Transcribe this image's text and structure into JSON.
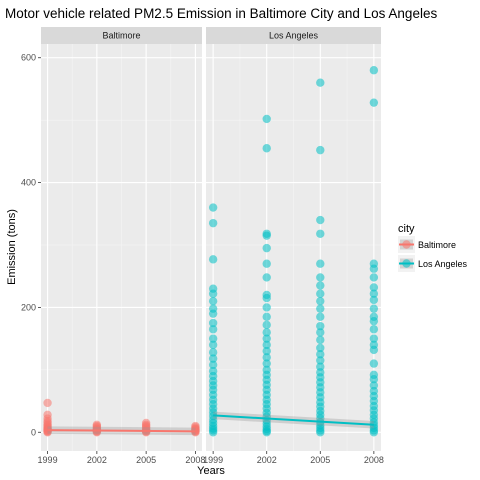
{
  "chart_data": {
    "type": "scatter",
    "title": "Motor vehicle related PM2.5 Emission in Baltimore City and Los Angeles",
    "xlabel": "Years",
    "ylabel": "Emission (tons)",
    "x_ticks": [
      1999,
      2002,
      2005,
      2008
    ],
    "y_ticks": [
      0,
      200,
      400,
      600
    ],
    "xlim": [
      1998.6,
      2008.4
    ],
    "ylim": [
      -30,
      622
    ],
    "grid": true,
    "legend": {
      "title": "city",
      "position": "right",
      "entries": [
        {
          "name": "Baltimore",
          "color": "#F8766D"
        },
        {
          "name": "Los Angeles",
          "color": "#00BFC4"
        }
      ]
    },
    "facets": [
      {
        "label": "Baltimore",
        "series": [
          {
            "name": "Baltimore",
            "color": "#F8766D",
            "points": [
              [
                1999,
                47
              ],
              [
                1999,
                28
              ],
              [
                1999,
                22
              ],
              [
                1999,
                18
              ],
              [
                1999,
                15
              ],
              [
                1999,
                12
              ],
              [
                1999,
                10
              ],
              [
                1999,
                8
              ],
              [
                1999,
                6
              ],
              [
                1999,
                5
              ],
              [
                1999,
                4
              ],
              [
                1999,
                3
              ],
              [
                1999,
                2
              ],
              [
                1999,
                1
              ],
              [
                1999,
                0
              ],
              [
                2002,
                12
              ],
              [
                2002,
                10
              ],
              [
                2002,
                8
              ],
              [
                2002,
                6
              ],
              [
                2002,
                5
              ],
              [
                2002,
                4
              ],
              [
                2002,
                3
              ],
              [
                2002,
                2
              ],
              [
                2002,
                1
              ],
              [
                2002,
                0
              ],
              [
                2005,
                15
              ],
              [
                2005,
                12
              ],
              [
                2005,
                10
              ],
              [
                2005,
                8
              ],
              [
                2005,
                6
              ],
              [
                2005,
                4
              ],
              [
                2005,
                3
              ],
              [
                2005,
                2
              ],
              [
                2005,
                1
              ],
              [
                2005,
                0
              ],
              [
                2008,
                10
              ],
              [
                2008,
                8
              ],
              [
                2008,
                6
              ],
              [
                2008,
                5
              ],
              [
                2008,
                4
              ],
              [
                2008,
                3
              ],
              [
                2008,
                2
              ],
              [
                2008,
                1
              ],
              [
                2008,
                0
              ]
            ],
            "trend": [
              [
                1999,
                3.5
              ],
              [
                2008,
                1.5
              ]
            ]
          }
        ]
      },
      {
        "label": "Los Angeles",
        "series": [
          {
            "name": "Los Angeles",
            "color": "#00BFC4",
            "points": [
              [
                1999,
                360
              ],
              [
                1999,
                335
              ],
              [
                1999,
                277
              ],
              [
                1999,
                230
              ],
              [
                1999,
                222
              ],
              [
                1999,
                210
              ],
              [
                1999,
                198
              ],
              [
                1999,
                190
              ],
              [
                1999,
                175
              ],
              [
                1999,
                165
              ],
              [
                1999,
                150
              ],
              [
                1999,
                140
              ],
              [
                1999,
                128
              ],
              [
                1999,
                118
              ],
              [
                1999,
                108
              ],
              [
                1999,
                98
              ],
              [
                1999,
                90
              ],
              [
                1999,
                82
              ],
              [
                1999,
                75
              ],
              [
                1999,
                68
              ],
              [
                1999,
                60
              ],
              [
                1999,
                52
              ],
              [
                1999,
                45
              ],
              [
                1999,
                38
              ],
              [
                1999,
                32
              ],
              [
                1999,
                26
              ],
              [
                1999,
                20
              ],
              [
                1999,
                15
              ],
              [
                1999,
                10
              ],
              [
                1999,
                6
              ],
              [
                1999,
                3
              ],
              [
                1999,
                0
              ],
              [
                2002,
                502
              ],
              [
                2002,
                455
              ],
              [
                2002,
                318
              ],
              [
                2002,
                315
              ],
              [
                2002,
                295
              ],
              [
                2002,
                270
              ],
              [
                2002,
                248
              ],
              [
                2002,
                220
              ],
              [
                2002,
                215
              ],
              [
                2002,
                200
              ],
              [
                2002,
                185
              ],
              [
                2002,
                172
              ],
              [
                2002,
                160
              ],
              [
                2002,
                150
              ],
              [
                2002,
                140
              ],
              [
                2002,
                130
              ],
              [
                2002,
                120
              ],
              [
                2002,
                110
              ],
              [
                2002,
                100
              ],
              [
                2002,
                92
              ],
              [
                2002,
                84
              ],
              [
                2002,
                76
              ],
              [
                2002,
                68
              ],
              [
                2002,
                60
              ],
              [
                2002,
                52
              ],
              [
                2002,
                45
              ],
              [
                2002,
                38
              ],
              [
                2002,
                31
              ],
              [
                2002,
                25
              ],
              [
                2002,
                19
              ],
              [
                2002,
                14
              ],
              [
                2002,
                9
              ],
              [
                2002,
                5
              ],
              [
                2002,
                2
              ],
              [
                2002,
                0
              ],
              [
                2005,
                560
              ],
              [
                2005,
                452
              ],
              [
                2005,
                340
              ],
              [
                2005,
                318
              ],
              [
                2005,
                270
              ],
              [
                2005,
                248
              ],
              [
                2005,
                235
              ],
              [
                2005,
                222
              ],
              [
                2005,
                210
              ],
              [
                2005,
                198
              ],
              [
                2005,
                185
              ],
              [
                2005,
                170
              ],
              [
                2005,
                160
              ],
              [
                2005,
                148
              ],
              [
                2005,
                135
              ],
              [
                2005,
                125
              ],
              [
                2005,
                115
              ],
              [
                2005,
                105
              ],
              [
                2005,
                96
              ],
              [
                2005,
                88
              ],
              [
                2005,
                80
              ],
              [
                2005,
                72
              ],
              [
                2005,
                64
              ],
              [
                2005,
                56
              ],
              [
                2005,
                48
              ],
              [
                2005,
                41
              ],
              [
                2005,
                34
              ],
              [
                2005,
                28
              ],
              [
                2005,
                22
              ],
              [
                2005,
                16
              ],
              [
                2005,
                11
              ],
              [
                2005,
                7
              ],
              [
                2005,
                3
              ],
              [
                2005,
                0
              ],
              [
                2008,
                580
              ],
              [
                2008,
                528
              ],
              [
                2008,
                270
              ],
              [
                2008,
                262
              ],
              [
                2008,
                248
              ],
              [
                2008,
                232
              ],
              [
                2008,
                222
              ],
              [
                2008,
                212
              ],
              [
                2008,
                198
              ],
              [
                2008,
                185
              ],
              [
                2008,
                178
              ],
              [
                2008,
                165
              ],
              [
                2008,
                150
              ],
              [
                2008,
                140
              ],
              [
                2008,
                132
              ],
              [
                2008,
                110
              ],
              [
                2008,
                92
              ],
              [
                2008,
                85
              ],
              [
                2008,
                75
              ],
              [
                2008,
                66
              ],
              [
                2008,
                58
              ],
              [
                2008,
                50
              ],
              [
                2008,
                42
              ],
              [
                2008,
                35
              ],
              [
                2008,
                28
              ],
              [
                2008,
                22
              ],
              [
                2008,
                16
              ],
              [
                2008,
                11
              ],
              [
                2008,
                7
              ],
              [
                2008,
                3
              ],
              [
                2008,
                0
              ]
            ],
            "trend": [
              [
                1999,
                27
              ],
              [
                2008,
                12
              ]
            ]
          }
        ]
      }
    ]
  }
}
